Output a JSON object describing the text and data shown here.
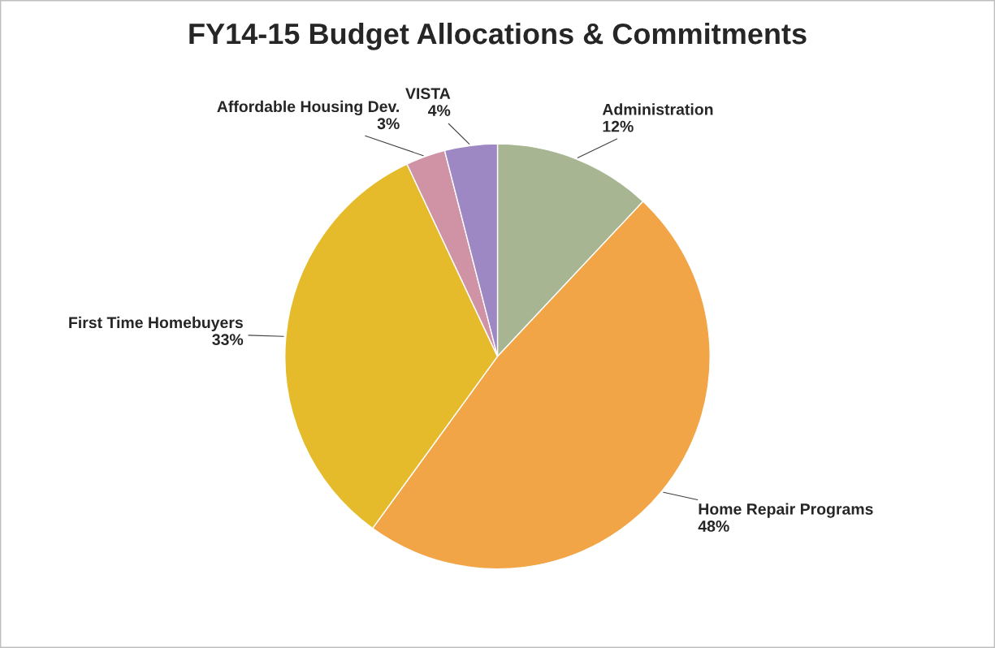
{
  "chart_data": {
    "type": "pie",
    "title": "FY14-15 Budget Allocations & Commitments",
    "categories": [
      "Administration",
      "Home Repair Programs",
      "First Time Homebuyers",
      "Affordable Housing Dev.",
      "VISTA"
    ],
    "values": [
      12,
      48,
      33,
      3,
      4
    ],
    "value_labels": [
      "12%",
      "48%",
      "33%",
      "3%",
      "4%"
    ],
    "colors": [
      "#a7b593",
      "#f2a546",
      "#e5bb2b",
      "#d093a6",
      "#9e88c3"
    ],
    "legend": false
  }
}
